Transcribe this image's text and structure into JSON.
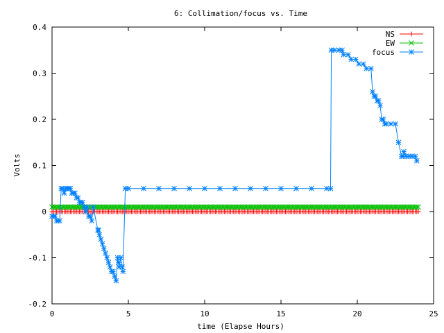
{
  "chart_data": {
    "type": "line",
    "title": "6: Collimation/focus vs. Time",
    "xlabel": "time (Elapse Hours)",
    "ylabel": "Volts",
    "xlim": [
      0,
      25
    ],
    "ylim": [
      -0.2,
      0.4
    ],
    "x_ticks": [
      0,
      5,
      10,
      15,
      20,
      25
    ],
    "y_ticks": [
      -0.2,
      -0.1,
      0,
      0.1,
      0.2,
      0.3,
      0.4
    ],
    "x_tick_labels": [
      "0",
      "5",
      "10",
      "15",
      "20",
      "25"
    ],
    "y_tick_labels": [
      "-0.2",
      "-0.1",
      "0",
      "0.1",
      "0.2",
      "0.3",
      "0.4"
    ],
    "grid": false,
    "legend_position": "top-right",
    "series": [
      {
        "name": "NS",
        "color": "#ff0000",
        "marker": "plus",
        "constant": 0.0,
        "x_range": [
          0,
          24
        ],
        "sample_step": 0.1
      },
      {
        "name": "EW",
        "color": "#00c000",
        "marker": "cross",
        "constant": 0.01,
        "x_range": [
          0,
          24
        ],
        "sample_step": 0.1
      },
      {
        "name": "focus",
        "color": "#0080ff",
        "marker": "star",
        "points": [
          [
            0.0,
            -0.01
          ],
          [
            0.1,
            -0.01
          ],
          [
            0.2,
            -0.01
          ],
          [
            0.3,
            -0.02
          ],
          [
            0.4,
            -0.02
          ],
          [
            0.5,
            -0.02
          ],
          [
            0.6,
            0.05
          ],
          [
            0.7,
            0.05
          ],
          [
            0.8,
            0.04
          ],
          [
            0.9,
            0.05
          ],
          [
            1.0,
            0.05
          ],
          [
            1.1,
            0.05
          ],
          [
            1.2,
            0.05
          ],
          [
            1.3,
            0.04
          ],
          [
            1.4,
            0.04
          ],
          [
            1.5,
            0.04
          ],
          [
            1.6,
            0.03
          ],
          [
            1.7,
            0.03
          ],
          [
            1.8,
            0.02
          ],
          [
            1.9,
            0.02
          ],
          [
            2.0,
            0.02
          ],
          [
            2.1,
            0.01
          ],
          [
            2.2,
            0.0
          ],
          [
            2.3,
            0.01
          ],
          [
            2.4,
            -0.01
          ],
          [
            2.5,
            -0.01
          ],
          [
            2.6,
            -0.02
          ],
          [
            2.7,
            0.01
          ],
          [
            3.0,
            -0.04
          ],
          [
            3.05,
            -0.04
          ],
          [
            3.1,
            -0.05
          ],
          [
            3.2,
            -0.06
          ],
          [
            3.3,
            -0.07
          ],
          [
            3.4,
            -0.08
          ],
          [
            3.5,
            -0.09
          ],
          [
            3.6,
            -0.1
          ],
          [
            3.7,
            -0.11
          ],
          [
            3.8,
            -0.12
          ],
          [
            3.9,
            -0.13
          ],
          [
            4.0,
            -0.13
          ],
          [
            4.1,
            -0.14
          ],
          [
            4.2,
            -0.15
          ],
          [
            4.3,
            -0.1
          ],
          [
            4.35,
            -0.11
          ],
          [
            4.4,
            -0.12
          ],
          [
            4.5,
            -0.1
          ],
          [
            4.6,
            -0.12
          ],
          [
            4.65,
            -0.13
          ],
          [
            4.8,
            0.05
          ],
          [
            5.0,
            0.05
          ],
          [
            6.0,
            0.05
          ],
          [
            7.0,
            0.05
          ],
          [
            8.0,
            0.05
          ],
          [
            9.0,
            0.05
          ],
          [
            10.0,
            0.05
          ],
          [
            11.0,
            0.05
          ],
          [
            12.0,
            0.05
          ],
          [
            13.0,
            0.05
          ],
          [
            14.0,
            0.05
          ],
          [
            15.0,
            0.05
          ],
          [
            16.0,
            0.05
          ],
          [
            17.0,
            0.05
          ],
          [
            18.0,
            0.05
          ],
          [
            18.25,
            0.05
          ],
          [
            18.3,
            0.35
          ],
          [
            18.5,
            0.35
          ],
          [
            18.8,
            0.35
          ],
          [
            19.0,
            0.35
          ],
          [
            19.1,
            0.34
          ],
          [
            19.4,
            0.34
          ],
          [
            19.6,
            0.33
          ],
          [
            19.9,
            0.33
          ],
          [
            20.1,
            0.32
          ],
          [
            20.4,
            0.32
          ],
          [
            20.6,
            0.31
          ],
          [
            20.9,
            0.31
          ],
          [
            21.0,
            0.26
          ],
          [
            21.1,
            0.25
          ],
          [
            21.2,
            0.25
          ],
          [
            21.3,
            0.24
          ],
          [
            21.4,
            0.24
          ],
          [
            21.5,
            0.23
          ],
          [
            21.6,
            0.2
          ],
          [
            21.7,
            0.2
          ],
          [
            21.8,
            0.19
          ],
          [
            21.9,
            0.19
          ],
          [
            22.2,
            0.19
          ],
          [
            22.5,
            0.19
          ],
          [
            22.7,
            0.15
          ],
          [
            22.9,
            0.12
          ],
          [
            23.0,
            0.12
          ],
          [
            23.05,
            0.13
          ],
          [
            23.2,
            0.12
          ],
          [
            23.4,
            0.12
          ],
          [
            23.6,
            0.12
          ],
          [
            23.8,
            0.12
          ],
          [
            23.9,
            0.11
          ]
        ]
      }
    ]
  }
}
